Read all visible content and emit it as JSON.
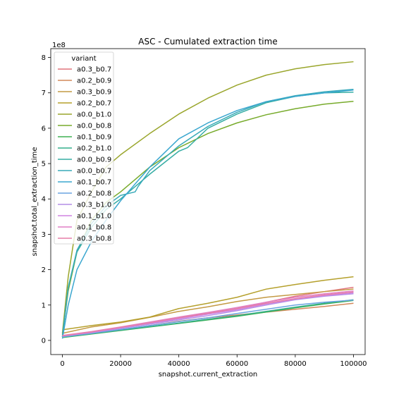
{
  "chart_data": {
    "type": "line",
    "title": "ASC - Cumulated extraction time",
    "xlabel": "snapshot.current_extraction",
    "ylabel": "snapshot.total_extraction_time",
    "y_multiplier": "1e8",
    "xlim": [
      -4000,
      104000
    ],
    "ylim": [
      -40000000.0,
      825000000.0
    ],
    "x_ticks": [
      0,
      20000,
      40000,
      60000,
      80000,
      100000
    ],
    "y_ticks": [
      0,
      100000000.0,
      200000000.0,
      300000000.0,
      400000000.0,
      500000000.0,
      600000000.0,
      700000000.0,
      800000000.0
    ],
    "y_tick_labels": [
      "0",
      "1",
      "2",
      "3",
      "4",
      "5",
      "6",
      "7",
      "8"
    ],
    "x_tick_labels": [
      "0",
      "20000",
      "40000",
      "60000",
      "80000",
      "100000"
    ],
    "grid": false,
    "legend_title": "variant",
    "legend_position": "upper-left",
    "series": [
      {
        "name": "a0.3_b0.7",
        "color": "#e1747d",
        "x": [
          0,
          10000,
          20000,
          30000,
          40000,
          50000,
          60000,
          70000,
          80000,
          90000,
          100000
        ],
        "y": [
          12000000.0,
          22000000.0,
          35000000.0,
          48000000.0,
          62000000.0,
          75000000.0,
          90000000.0,
          108000000.0,
          125000000.0,
          138000000.0,
          150000000.0
        ]
      },
      {
        "name": "a0.2_b0.9",
        "color": "#d2885a",
        "x": [
          0,
          10000,
          20000,
          30000,
          40000,
          50000,
          60000,
          70000,
          80000,
          90000,
          100000
        ],
        "y": [
          10000000.0,
          20000000.0,
          30000000.0,
          42000000.0,
          54000000.0,
          64000000.0,
          72000000.0,
          80000000.0,
          88000000.0,
          96000000.0,
          105000000.0
        ]
      },
      {
        "name": "a0.3_b0.9",
        "color": "#c49a44",
        "x": [
          0,
          10000,
          20000,
          30000,
          40000,
          50000,
          60000,
          70000,
          80000,
          90000,
          100000
        ],
        "y": [
          20000000.0,
          38000000.0,
          50000000.0,
          65000000.0,
          82000000.0,
          95000000.0,
          110000000.0,
          122000000.0,
          130000000.0,
          138000000.0,
          145000000.0
        ]
      },
      {
        "name": "a0.2_b0.7",
        "color": "#b5a02c",
        "x": [
          0,
          10000,
          20000,
          30000,
          40000,
          50000,
          60000,
          70000,
          80000,
          90000,
          100000
        ],
        "y": [
          30000000.0,
          42000000.0,
          52000000.0,
          66000000.0,
          90000000.0,
          105000000.0,
          122000000.0,
          145000000.0,
          158000000.0,
          170000000.0,
          180000000.0
        ]
      },
      {
        "name": "a0.0_b1.0",
        "color": "#9aa62c",
        "x": [
          0,
          2000,
          5000,
          10000,
          15000,
          20000,
          30000,
          40000,
          50000,
          60000,
          70000,
          80000,
          90000,
          100000
        ],
        "y": [
          20000000.0,
          180000000.0,
          340000000.0,
          420000000.0,
          490000000.0,
          525000000.0,
          585000000.0,
          640000000.0,
          685000000.0,
          722000000.0,
          750000000.0,
          768000000.0,
          780000000.0,
          788000000.0
        ]
      },
      {
        "name": "a0.0_b0.8",
        "color": "#78ab2c",
        "x": [
          0,
          2000,
          5000,
          10000,
          15000,
          20000,
          30000,
          40000,
          50000,
          60000,
          70000,
          80000,
          90000,
          100000
        ],
        "y": [
          15000000.0,
          140000000.0,
          250000000.0,
          340000000.0,
          390000000.0,
          420000000.0,
          490000000.0,
          545000000.0,
          585000000.0,
          615000000.0,
          638000000.0,
          655000000.0,
          668000000.0,
          676000000.0
        ]
      },
      {
        "name": "a0.1_b0.9",
        "color": "#3fb152",
        "x": [
          0,
          10000,
          20000,
          30000,
          40000,
          50000,
          60000,
          70000,
          80000,
          90000,
          100000
        ],
        "y": [
          8000000.0,
          18000000.0,
          28000000.0,
          38000000.0,
          48000000.0,
          58000000.0,
          68000000.0,
          80000000.0,
          92000000.0,
          103000000.0,
          113000000.0
        ]
      },
      {
        "name": "a0.2_b1.0",
        "color": "#33af8b",
        "x": [
          0,
          10000,
          20000,
          30000,
          40000,
          50000,
          60000,
          70000,
          80000,
          90000,
          100000
        ],
        "y": [
          9000000.0,
          19000000.0,
          29000000.0,
          39000000.0,
          49000000.0,
          60000000.0,
          70000000.0,
          82000000.0,
          94000000.0,
          105000000.0,
          115000000.0
        ]
      },
      {
        "name": "a0.0_b0.9",
        "color": "#36ada4",
        "x": [
          0,
          2000,
          5000,
          10000,
          15000,
          20000,
          25000,
          30000,
          40000,
          43000,
          50000,
          60000,
          70000,
          80000,
          90000,
          100000
        ],
        "y": [
          10000000.0,
          150000000.0,
          250000000.0,
          320000000.0,
          370000000.0,
          400000000.0,
          435000000.0,
          470000000.0,
          535000000.0,
          545000000.0,
          600000000.0,
          640000000.0,
          672000000.0,
          690000000.0,
          700000000.0,
          702000000.0
        ]
      },
      {
        "name": "a0.0_b0.7",
        "color": "#38aab9",
        "x": [
          0,
          2000,
          5000,
          10000,
          15000,
          20000,
          25000,
          26000,
          30000,
          40000,
          50000,
          60000,
          70000,
          80000,
          90000,
          100000
        ],
        "y": [
          10000000.0,
          150000000.0,
          255000000.0,
          330000000.0,
          380000000.0,
          410000000.0,
          420000000.0,
          435000000.0,
          480000000.0,
          550000000.0,
          605000000.0,
          645000000.0,
          675000000.0,
          692000000.0,
          703000000.0,
          710000000.0
        ]
      },
      {
        "name": "a0.1_b0.7",
        "color": "#3ba7cf",
        "x": [
          0,
          2000,
          5000,
          10000,
          15000,
          20000,
          30000,
          40000,
          50000,
          60000,
          70000,
          80000,
          90000,
          100000
        ],
        "y": [
          5000000.0,
          100000000.0,
          200000000.0,
          280000000.0,
          340000000.0,
          395000000.0,
          490000000.0,
          570000000.0,
          615000000.0,
          650000000.0,
          675000000.0,
          690000000.0,
          700000000.0,
          708000000.0
        ]
      },
      {
        "name": "a0.2_b0.8",
        "color": "#6aa3e0",
        "x": [
          0,
          10000,
          20000,
          30000,
          40000,
          50000,
          60000,
          70000,
          80000,
          90000,
          100000
        ],
        "y": [
          10000000.0,
          20000000.0,
          31000000.0,
          42000000.0,
          53000000.0,
          64000000.0,
          76000000.0,
          88000000.0,
          100000000.0,
          108000000.0,
          114000000.0
        ]
      },
      {
        "name": "a0.3_b1.0",
        "color": "#b48ee6",
        "x": [
          0,
          10000,
          20000,
          30000,
          40000,
          50000,
          60000,
          70000,
          80000,
          90000,
          100000
        ],
        "y": [
          12000000.0,
          22000000.0,
          34000000.0,
          46000000.0,
          58000000.0,
          70000000.0,
          84000000.0,
          100000000.0,
          115000000.0,
          125000000.0,
          132000000.0
        ]
      },
      {
        "name": "a0.1_b1.0",
        "color": "#d184e0",
        "x": [
          0,
          10000,
          20000,
          30000,
          40000,
          50000,
          60000,
          70000,
          80000,
          90000,
          100000
        ],
        "y": [
          13000000.0,
          23000000.0,
          36000000.0,
          48000000.0,
          61000000.0,
          74000000.0,
          87000000.0,
          103000000.0,
          117000000.0,
          127000000.0,
          135000000.0
        ]
      },
      {
        "name": "a0.1_b0.8",
        "color": "#e07fc6",
        "x": [
          0,
          10000,
          20000,
          30000,
          40000,
          50000,
          60000,
          70000,
          80000,
          90000,
          100000
        ],
        "y": [
          14000000.0,
          25000000.0,
          38000000.0,
          52000000.0,
          66000000.0,
          79000000.0,
          93000000.0,
          108000000.0,
          122000000.0,
          132000000.0,
          140000000.0
        ]
      },
      {
        "name": "a0.3_b0.8",
        "color": "#e77fa8",
        "x": [
          0,
          10000,
          20000,
          30000,
          40000,
          50000,
          60000,
          70000,
          80000,
          90000,
          100000
        ],
        "y": [
          13000000.0,
          24000000.0,
          37000000.0,
          50000000.0,
          64000000.0,
          77000000.0,
          90000000.0,
          105000000.0,
          118000000.0,
          129000000.0,
          137000000.0
        ]
      }
    ]
  }
}
